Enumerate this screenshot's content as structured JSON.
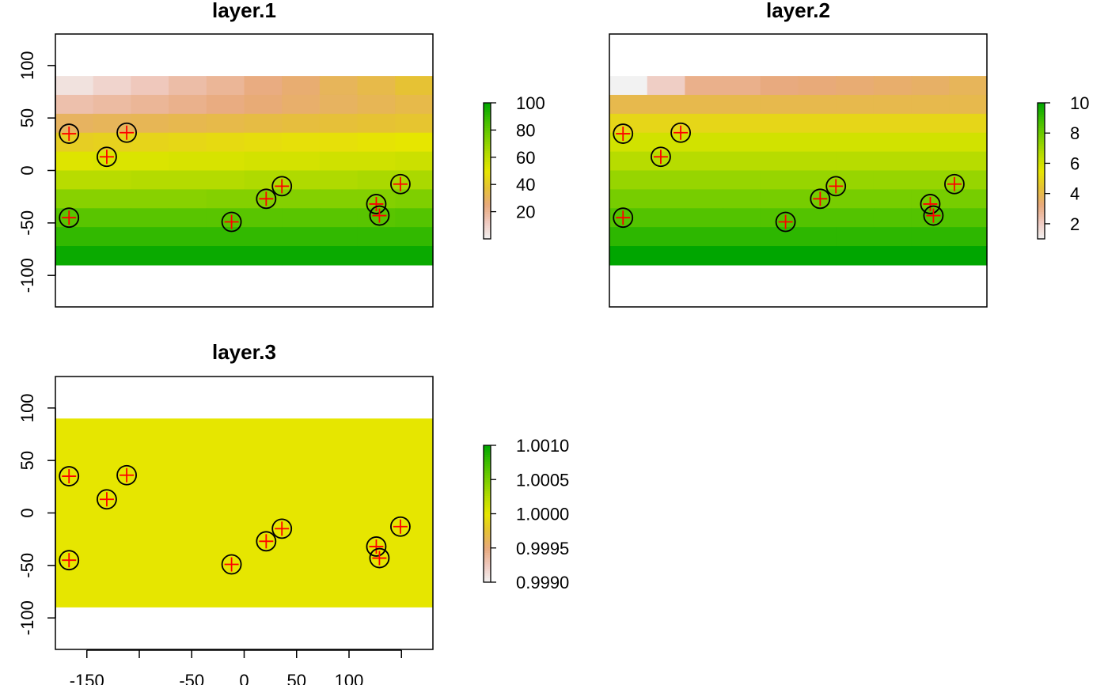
{
  "chart_data": [
    {
      "type": "heatmap",
      "title": "layer.1",
      "xlim": [
        -180,
        180
      ],
      "ylim": [
        -130,
        130
      ],
      "raster_extent": {
        "x": [
          -180,
          180
        ],
        "y": [
          -90,
          90
        ]
      },
      "y_ticks": [
        -100,
        -50,
        0,
        50,
        100
      ],
      "y_tick_labels": [
        "-100",
        "-50",
        "0",
        "50",
        "100"
      ],
      "legend": {
        "range": [
          0,
          100
        ],
        "ticks": [
          20,
          40,
          60,
          80,
          100
        ],
        "tick_labels": [
          "20",
          "40",
          "60",
          "80",
          "100"
        ]
      },
      "rows": [
        [
          5,
          9,
          13,
          17,
          20,
          24,
          27,
          31,
          34,
          38
        ],
        [
          16,
          18,
          20,
          22,
          24,
          26,
          28,
          30,
          32,
          34
        ],
        [
          30,
          31,
          32,
          33,
          34,
          35,
          36,
          37,
          38,
          39
        ],
        [
          42,
          43,
          44,
          45,
          46,
          47,
          48,
          48,
          49,
          50
        ],
        [
          52,
          53,
          53,
          54,
          54,
          55,
          55,
          56,
          56,
          57
        ],
        [
          62,
          62,
          63,
          63,
          63,
          64,
          64,
          64,
          65,
          65
        ],
        [
          72,
          72,
          72,
          72,
          73,
          73,
          73,
          73,
          73,
          74
        ],
        [
          82,
          82,
          82,
          82,
          82,
          82,
          82,
          82,
          82,
          83
        ],
        [
          90,
          90,
          90,
          90,
          90,
          90,
          90,
          90,
          90,
          90
        ],
        [
          98,
          98,
          98,
          98,
          98,
          98,
          98,
          98,
          98,
          98
        ]
      ]
    },
    {
      "type": "heatmap",
      "title": "layer.2",
      "xlim": [
        -180,
        180
      ],
      "ylim": [
        -130,
        130
      ],
      "raster_extent": {
        "x": [
          -180,
          180
        ],
        "y": [
          -90,
          90
        ]
      },
      "legend": {
        "range": [
          1,
          10
        ],
        "ticks": [
          2,
          4,
          6,
          8,
          10
        ],
        "tick_labels": [
          "2",
          "4",
          "6",
          "8",
          "10"
        ]
      },
      "rows": [
        [
          1,
          2,
          3,
          3,
          3.2,
          3.3,
          3.4,
          3.5,
          3.6,
          3.8
        ],
        [
          4,
          4,
          4,
          4,
          4,
          4,
          4,
          4,
          4,
          4
        ],
        [
          5,
          5,
          5,
          5,
          5,
          5,
          5,
          5,
          5,
          5
        ],
        [
          6,
          6,
          6,
          6,
          6,
          6,
          6,
          6,
          6,
          6
        ],
        [
          6.6,
          6.6,
          6.6,
          6.6,
          6.6,
          6.6,
          6.6,
          6.6,
          6.6,
          6.6
        ],
        [
          7.2,
          7.2,
          7.2,
          7.2,
          7.2,
          7.2,
          7.2,
          7.2,
          7.2,
          7.2
        ],
        [
          7.8,
          7.8,
          7.8,
          7.8,
          7.8,
          7.8,
          7.8,
          7.8,
          7.8,
          7.8
        ],
        [
          8.5,
          8.5,
          8.5,
          8.5,
          8.5,
          8.5,
          8.5,
          8.5,
          8.5,
          8.5
        ],
        [
          9.2,
          9.2,
          9.2,
          9.2,
          9.2,
          9.2,
          9.2,
          9.2,
          9.2,
          9.2
        ],
        [
          10,
          10,
          10,
          10,
          10,
          10,
          10,
          10,
          10,
          10
        ]
      ]
    },
    {
      "type": "heatmap",
      "title": "layer.3",
      "xlim": [
        -180,
        180
      ],
      "ylim": [
        -130,
        130
      ],
      "raster_extent": {
        "x": [
          -180,
          180
        ],
        "y": [
          -90,
          90
        ]
      },
      "y_ticks": [
        -100,
        -50,
        0,
        50,
        100
      ],
      "y_tick_labels": [
        "-100",
        "-50",
        "0",
        "50",
        "100"
      ],
      "x_ticks": [
        -150,
        -100,
        -50,
        0,
        50,
        100,
        150
      ],
      "x_tick_labels": [
        "-150",
        "",
        "-50",
        "0",
        "50",
        "100",
        ""
      ],
      "legend": {
        "range": [
          0.999,
          1.001
        ],
        "ticks": [
          0.999,
          0.9995,
          1.0,
          1.0005,
          1.001
        ],
        "tick_labels": [
          "0.9990",
          "0.9995",
          "1.0000",
          "1.0005",
          "1.0010"
        ]
      },
      "constant_value": 1.0
    }
  ],
  "points": [
    {
      "x": -167,
      "y": 35
    },
    {
      "x": -131,
      "y": 13
    },
    {
      "x": -112,
      "y": 36
    },
    {
      "x": -167,
      "y": -45
    },
    {
      "x": -12,
      "y": -49
    },
    {
      "x": 21,
      "y": -27
    },
    {
      "x": 36,
      "y": -15
    },
    {
      "x": 126,
      "y": -32
    },
    {
      "x": 129,
      "y": -43
    },
    {
      "x": 149,
      "y": -13
    }
  ],
  "colors": {
    "ramp": [
      "#F2F2F2",
      "#EFC9BF",
      "#E8A97C",
      "#E6C136",
      "#E6E600",
      "#B6DC00",
      "#7ACE00",
      "#3FBE00",
      "#00A600"
    ],
    "point_circle": "#000000",
    "point_cross": "#FF0000"
  }
}
